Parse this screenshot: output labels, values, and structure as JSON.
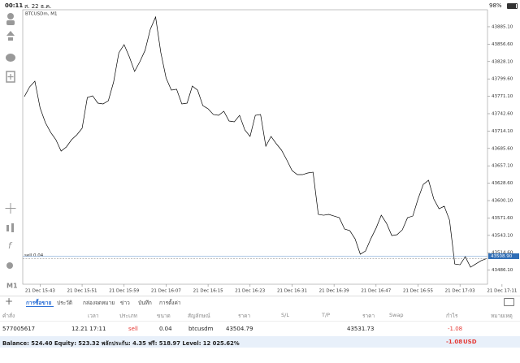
{
  "status_bar": {
    "time": "00:11",
    "date": "ส. 22 ธ.ค.",
    "battery": "98%"
  },
  "toolbar": {
    "timeframe": "M1"
  },
  "chart_data": {
    "type": "line",
    "title": "BTCUSDm, M1",
    "color": "#000000",
    "categories": [
      null,
      null,
      null,
      "21 Dec 15:43",
      null,
      null,
      null,
      null,
      null,
      null,
      null,
      "21 Dec 15:51",
      null,
      null,
      null,
      null,
      null,
      null,
      null,
      "21 Dec 15:59",
      null,
      null,
      null,
      null,
      null,
      null,
      null,
      "21 Dec 16:07",
      null,
      null,
      null,
      null,
      null,
      null,
      null,
      "21 Dec 16:15",
      null,
      null,
      null,
      null,
      null,
      null,
      null,
      "21 Dec 16:23",
      null,
      null,
      null,
      null,
      null,
      null,
      null,
      "21 Dec 16:31",
      null,
      null,
      null,
      null,
      null,
      null,
      null,
      "21 Dec 16:39",
      null,
      null,
      null,
      null,
      null,
      null,
      null,
      "21 Dec 16:47",
      null,
      null,
      null,
      null,
      null,
      null,
      null,
      "21 Dec 16:55",
      null,
      null,
      null,
      null,
      null,
      null,
      null,
      "21 Dec 17:03",
      null,
      null,
      null,
      null,
      null,
      null,
      null,
      "21 Dec 17:11"
    ],
    "values": [
      43770.6,
      43786.5,
      43795.9,
      43751.9,
      43727.9,
      43712.0,
      43700.0,
      43681.3,
      43688.0,
      43700.0,
      43708.0,
      43718.6,
      43769.2,
      43771.9,
      43759.9,
      43758.6,
      43763.9,
      43794.5,
      43842.5,
      43855.8,
      43835.8,
      43811.9,
      43827.8,
      43846.5,
      43881.1,
      43901.1,
      43842.5,
      43801.2,
      43781.2,
      43782.6,
      43758.6,
      43759.9,
      43787.9,
      43781.2,
      43755.9,
      43750.6,
      43741.3,
      43739.9,
      43746.6,
      43730.6,
      43729.3,
      43739.9,
      43716.0,
      43705.3,
      43739.9,
      43741.3,
      43689.3,
      43705.3,
      43693.3,
      43682.7,
      43666.7,
      43649.4,
      43642.7,
      43642.7,
      43645.4,
      43646.7,
      43577.5,
      43576.1,
      43577.5,
      43574.8,
      43572.1,
      43553.5,
      43550.8,
      43537.5,
      43512.2,
      43517.5,
      43537.5,
      43554.8,
      43576.1,
      43562.8,
      43542.8,
      43544.2,
      43552.1,
      43572.1,
      43574.8,
      43602.8,
      43626.7,
      43633.4,
      43602.8,
      43586.8,
      43590.8,
      43568.1,
      43496.2,
      43494.9,
      43508.2,
      43490.9,
      43496.2,
      43501.5,
      43504.79,
      null,
      null,
      null
    ],
    "ylim": [
      43463,
      43913
    ],
    "yticks": [
      {
        "value": 43885.1,
        "label": "43885.10"
      },
      {
        "value": 43856.6,
        "label": "43856.60"
      },
      {
        "value": 43828.1,
        "label": "43828.10"
      },
      {
        "value": 43799.6,
        "label": "43799.60"
      },
      {
        "value": 43771.1,
        "label": "43771.10"
      },
      {
        "value": 43742.6,
        "label": "43742.60"
      },
      {
        "value": 43714.1,
        "label": "43714.10"
      },
      {
        "value": 43685.6,
        "label": "43685.60"
      },
      {
        "value": 43657.1,
        "label": "43657.10"
      },
      {
        "value": 43628.6,
        "label": "43628.60"
      },
      {
        "value": 43600.1,
        "label": "43600.10"
      },
      {
        "value": 43571.6,
        "label": "43571.60"
      },
      {
        "value": 43543.1,
        "label": "43543.10"
      },
      {
        "value": 43514.6,
        "label": "43514.60"
      },
      {
        "value": 43486.1,
        "label": "43486.10"
      }
    ],
    "order_line": {
      "label": "sell 0.04",
      "value": 43504.79
    },
    "price_tag": {
      "value": 43508.9,
      "label": "43508.90"
    }
  },
  "tabs": [
    "การซื้อขาย",
    "ประวัติ",
    "กล่องจดหมาย",
    "ข่าว",
    "บันทึก",
    "การตั้งค่า"
  ],
  "table": {
    "columns": [
      "คำสั่ง",
      "เวลา",
      "ประเภท",
      "ขนาด",
      "สัญลักษณ์",
      "ราคา",
      "S/L",
      "T/P",
      "ราคา",
      "Swap",
      "กำไร",
      "หมายเหตุ"
    ],
    "rows": [
      [
        "577005617",
        "12.21 17:11",
        "sell",
        "0.04",
        "btcusdm",
        "43504.79",
        null,
        null,
        "43531.73",
        null,
        "-1.08",
        null
      ]
    ]
  },
  "footer": {
    "summary": "Balance: 524.40 Equity: 523.32 พลักประกัน: 4.35 ฟรี: 518.97 Level: 12 025.62%",
    "profit": "-1.08",
    "currency": "USD"
  }
}
